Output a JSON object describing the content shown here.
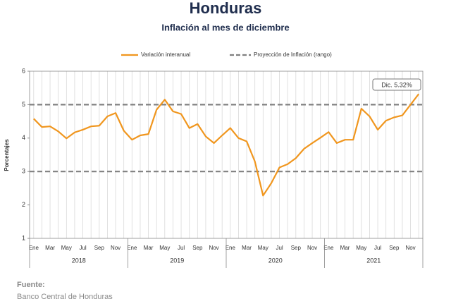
{
  "chart_data": {
    "type": "line",
    "title": "Honduras",
    "subtitle": "Inflación al mes de diciembre",
    "y_label": "Porcentajes",
    "annotation": "Dic. 5.32%",
    "source_label": "Fuente:",
    "source": "Banco Central de Honduras",
    "categories": [
      "Ene",
      null,
      "Mar",
      null,
      "May",
      null,
      "Jul",
      null,
      "Sep",
      null,
      "Nov",
      null,
      "Ene",
      null,
      "Mar",
      null,
      "May",
      null,
      "Jul",
      null,
      "Sep",
      null,
      "Nov",
      null,
      "Ene",
      null,
      "Mar",
      null,
      "May",
      null,
      "Jul",
      null,
      "Sep",
      null,
      "Nov",
      null,
      "Ene",
      null,
      "Mar",
      null,
      "May",
      null,
      "Jul",
      null,
      "Sep",
      null,
      "Nov",
      null
    ],
    "years": [
      "2018",
      "2019",
      "2020",
      "2021"
    ],
    "series": [
      {
        "name": "Variación interanual",
        "color": "#f0961e",
        "values": [
          4.58,
          4.33,
          4.35,
          4.2,
          3.99,
          4.17,
          4.25,
          4.35,
          4.37,
          4.65,
          4.75,
          4.22,
          3.95,
          4.08,
          4.12,
          4.85,
          5.15,
          4.8,
          4.72,
          4.3,
          4.42,
          4.05,
          3.85,
          4.08,
          4.3,
          4.0,
          3.9,
          3.3,
          2.28,
          2.65,
          3.12,
          3.22,
          3.4,
          3.68,
          3.85,
          4.01,
          4.18,
          3.85,
          3.95,
          3.95,
          4.88,
          4.65,
          4.25,
          4.52,
          4.62,
          4.68,
          5.0,
          5.32
        ]
      }
    ],
    "projection": {
      "name": "Proyección de Inflación (rango)",
      "color": "#808080",
      "values": [
        3,
        5
      ]
    },
    "ylim": [
      1,
      6
    ],
    "yticks": [
      1,
      2,
      3,
      4,
      5,
      6
    ],
    "legend": "top"
  }
}
